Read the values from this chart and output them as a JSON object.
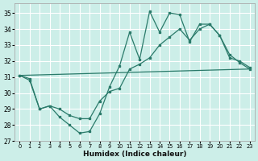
{
  "xlabel": "Humidex (Indice chaleur)",
  "bg_color": "#cceee8",
  "grid_color": "#ffffff",
  "line_color": "#2a7a6a",
  "xlim": [
    -0.5,
    23.5
  ],
  "ylim": [
    27,
    35.6
  ],
  "yticks": [
    27,
    28,
    29,
    30,
    31,
    32,
    33,
    34,
    35
  ],
  "xticks": [
    0,
    1,
    2,
    3,
    4,
    5,
    6,
    7,
    8,
    9,
    10,
    11,
    12,
    13,
    14,
    15,
    16,
    17,
    18,
    19,
    20,
    21,
    22,
    23
  ],
  "line1_x": [
    0,
    1,
    2,
    3,
    4,
    5,
    6,
    7,
    8,
    9,
    10,
    11,
    12,
    13,
    14,
    15,
    16,
    17,
    18,
    19,
    20,
    21,
    22,
    23
  ],
  "line1_y": [
    31.1,
    30.9,
    29.0,
    29.2,
    28.5,
    28.0,
    27.5,
    27.6,
    28.7,
    30.4,
    31.7,
    33.8,
    32.1,
    35.1,
    33.8,
    35.0,
    34.9,
    33.2,
    34.3,
    34.3,
    33.6,
    32.4,
    31.9,
    31.5
  ],
  "line2_x": [
    0,
    1,
    2,
    3,
    4,
    5,
    6,
    7,
    8,
    9,
    10,
    11,
    12,
    13,
    14,
    15,
    16,
    17,
    18,
    19,
    20,
    21,
    22,
    23
  ],
  "line2_y": [
    31.1,
    30.8,
    29.0,
    29.2,
    29.0,
    28.6,
    28.4,
    28.4,
    29.5,
    30.1,
    30.3,
    31.5,
    31.8,
    32.2,
    33.0,
    33.5,
    34.0,
    33.3,
    34.0,
    34.3,
    33.6,
    32.2,
    32.0,
    31.6
  ],
  "line3_x": [
    0,
    23
  ],
  "line3_y": [
    31.1,
    31.5
  ]
}
